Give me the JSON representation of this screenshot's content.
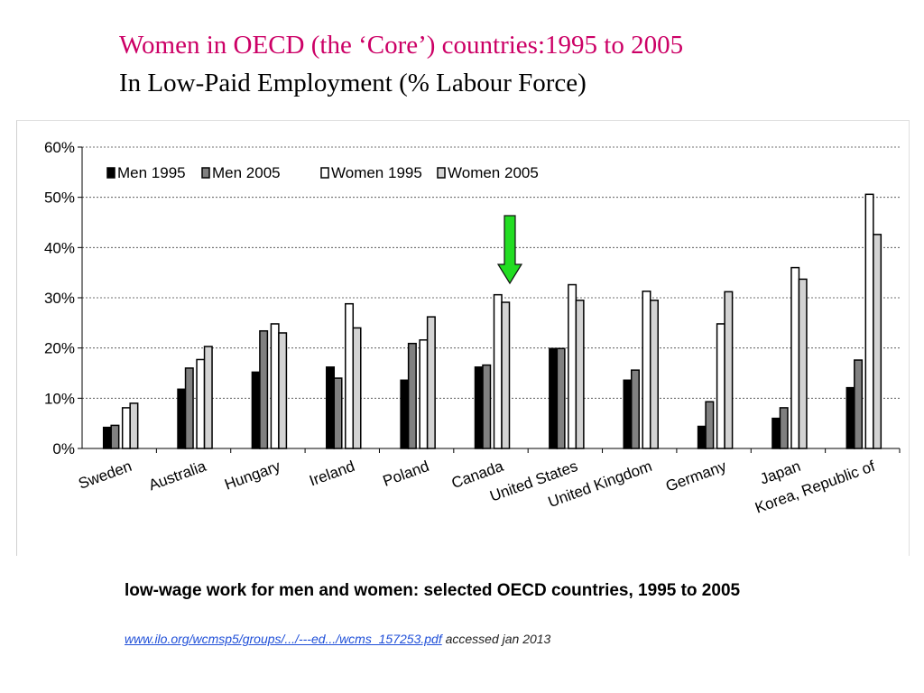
{
  "slide": {
    "title_line1": "Women in OECD (the ‘Core’) countries:1995 to 2005",
    "title_line2": "In Low-Paid Employment  (% Labour Force)",
    "caption": "low-wage work for men and women: selected OECD countries, 1995 to 2005",
    "source_link": "www.ilo.org/wcmsp5/groups/.../---ed.../wcms_157253.pdf",
    "source_note": " accessed jan 2013"
  },
  "colors": {
    "title_accent": "#cc0066",
    "men_1995": "#000000",
    "men_2005": "#808080",
    "women_1995": "#ffffff",
    "women_2005": "#d3d3d3",
    "arrow": "#22dd22"
  },
  "chart_data": {
    "type": "bar",
    "title": "",
    "xlabel": "",
    "ylabel": "",
    "ylim": [
      0,
      60
    ],
    "y_ticks": [
      "0%",
      "10%",
      "20%",
      "30%",
      "40%",
      "50%",
      "60%"
    ],
    "grid": true,
    "legend_position": "top-left",
    "categories": [
      "Sweden",
      "Australia",
      "Hungary",
      "Ireland",
      "Poland",
      "Canada",
      "United States",
      "United Kingdom",
      "Germany",
      "Japan",
      "Korea, Republic of"
    ],
    "series": [
      {
        "name": "Men 1995",
        "values": [
          4.2,
          11.8,
          15.2,
          16.2,
          13.6,
          16.2,
          19.9,
          13.6,
          4.4,
          6.0,
          12.1
        ]
      },
      {
        "name": "Men 2005",
        "values": [
          4.6,
          16.0,
          23.4,
          14.0,
          20.9,
          16.6,
          19.9,
          15.6,
          9.3,
          8.1,
          17.6
        ]
      },
      {
        "name": "Women 1995",
        "values": [
          8.1,
          17.7,
          24.8,
          28.8,
          21.6,
          30.6,
          32.6,
          31.3,
          24.8,
          36.0,
          50.6
        ]
      },
      {
        "name": "Women 2005",
        "values": [
          9.0,
          20.3,
          23.0,
          24.0,
          26.2,
          29.1,
          29.5,
          29.5,
          31.2,
          33.7,
          42.6
        ]
      }
    ],
    "annotation": {
      "type": "arrow",
      "points_to": "Canada",
      "direction": "down"
    }
  }
}
